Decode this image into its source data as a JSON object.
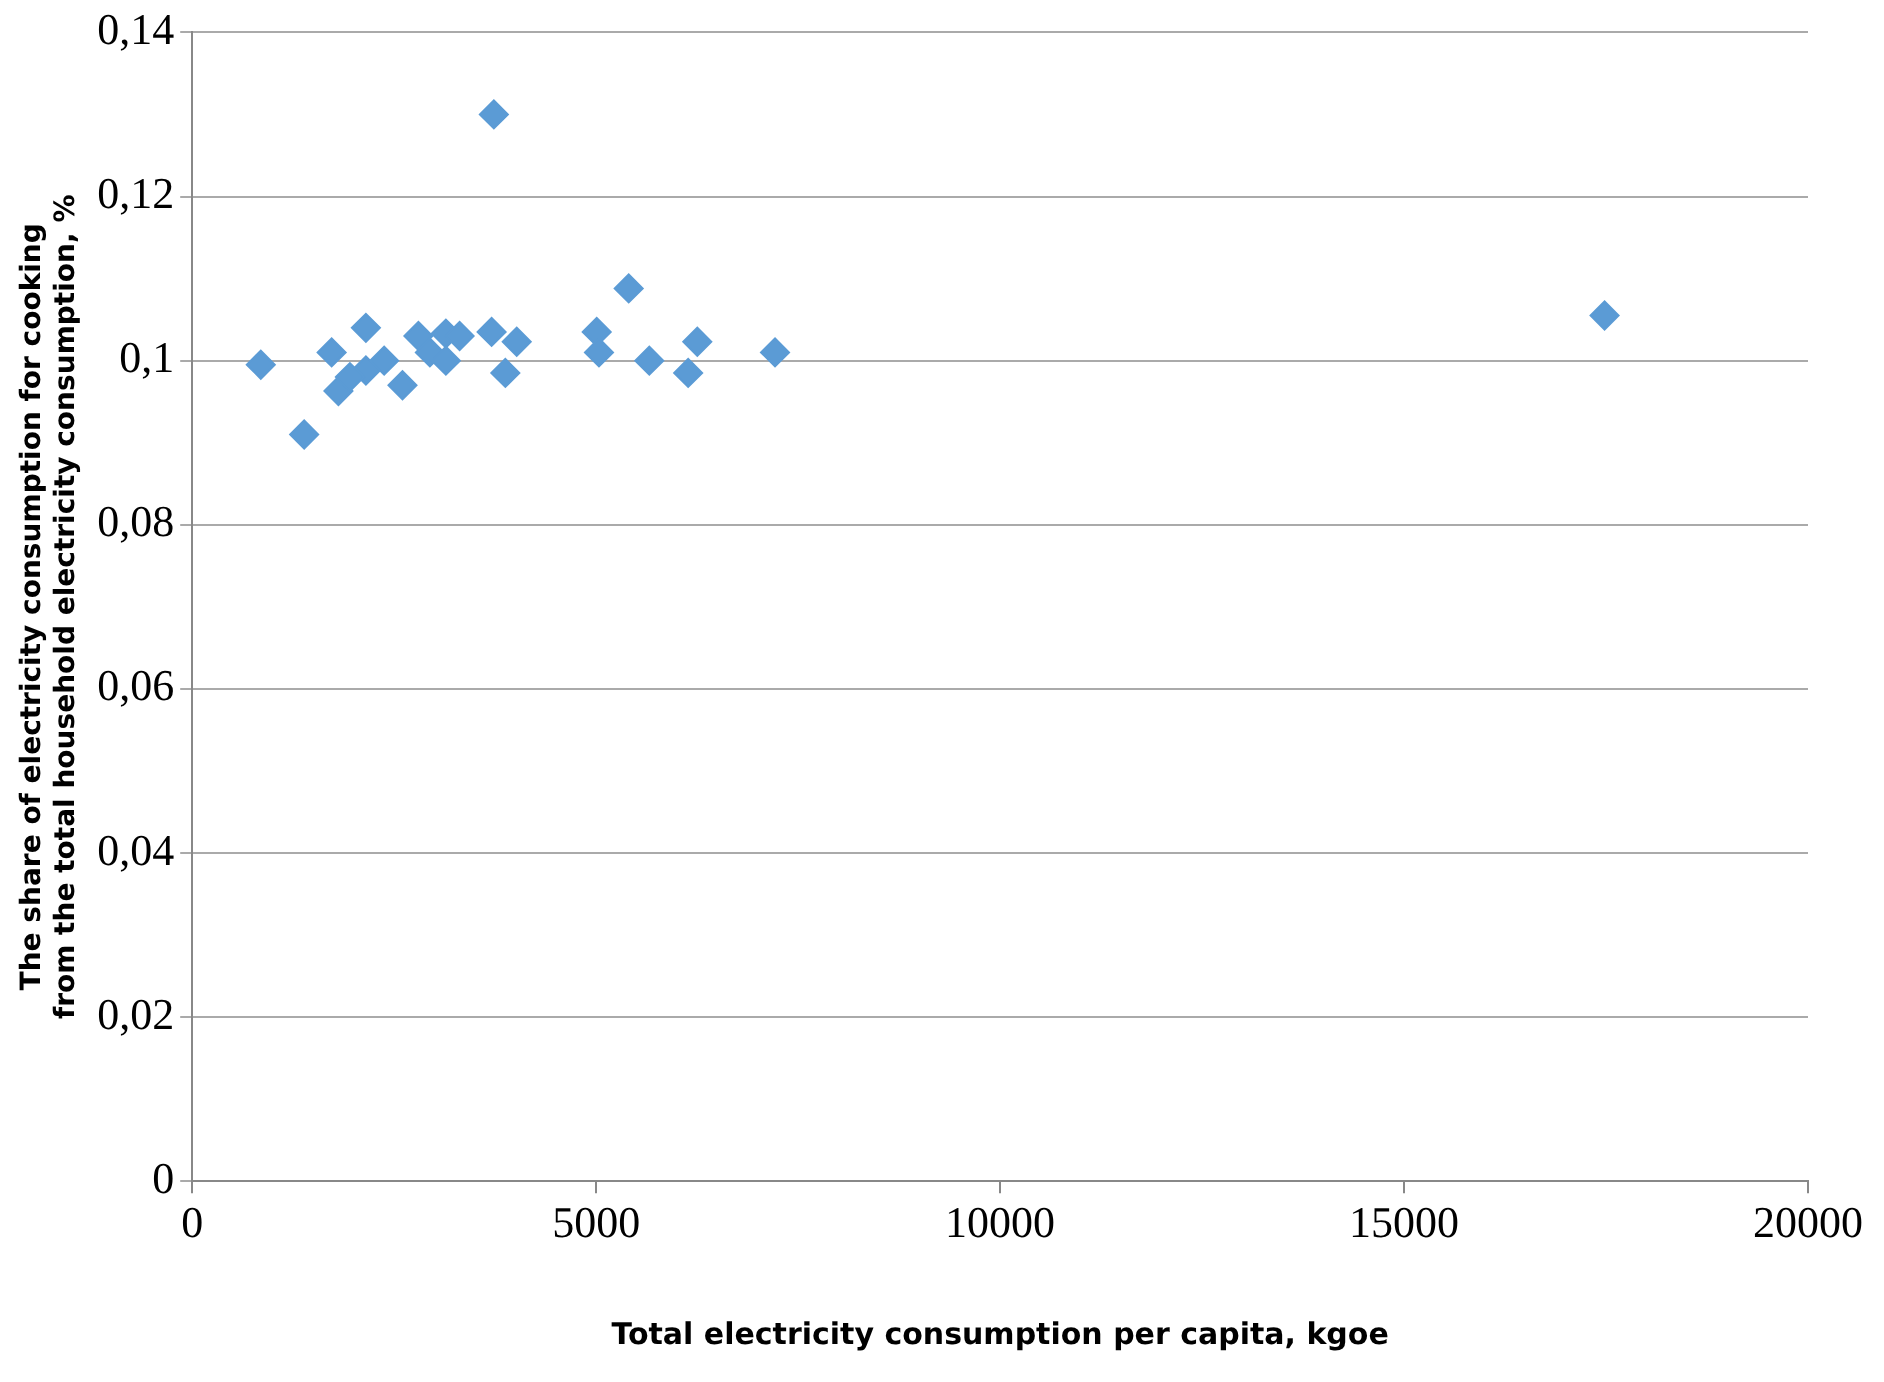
{
  "chart_data": {
    "type": "scatter",
    "xlabel": "Total electricity consumption per capita, kgoe",
    "ylabel": "The share of electricity consumption for cooking from the total household electricity consumption, %",
    "x": [
      849,
      1386,
      2150,
      1726,
      1810,
      2150,
      2376,
      2603,
      2800,
      3140,
      3310,
      3706,
      2942,
      3140,
      4017,
      3876,
      5007,
      5035,
      5658,
      6252,
      6139,
      7214,
      5403,
      3734,
      17482,
      1952
    ],
    "series": [
      {
        "color": "#5b9bd5",
        "values": [
          0.0995,
          0.091,
          0.104,
          0.101,
          0.0963,
          0.0988,
          0.1,
          0.097,
          0.103,
          0.1033,
          0.103,
          0.1035,
          0.101,
          0.1,
          0.1023,
          0.0985,
          0.1035,
          0.101,
          0.1,
          0.1023,
          0.0985,
          0.101,
          0.1088,
          0.13,
          0.1055,
          0.098
        ]
      }
    ],
    "xlim": [
      0,
      20000
    ],
    "xticks": [
      0,
      5000,
      10000,
      15000,
      20000
    ],
    "ylim": [
      0,
      0.14
    ],
    "yticks": [
      {
        "value": 0,
        "label": "0"
      },
      {
        "value": 0.02,
        "label": "0,02"
      },
      {
        "value": 0.04,
        "label": "0,04"
      },
      {
        "value": 0.06,
        "label": "0,06"
      },
      {
        "value": 0.08,
        "label": "0,08"
      },
      {
        "value": 0.1,
        "label": "0,1"
      },
      {
        "value": 0.12,
        "label": "0,12"
      },
      {
        "value": 0.14,
        "label": "0,14"
      }
    ],
    "grid": "y",
    "legend": false,
    "marker": "diamond"
  }
}
